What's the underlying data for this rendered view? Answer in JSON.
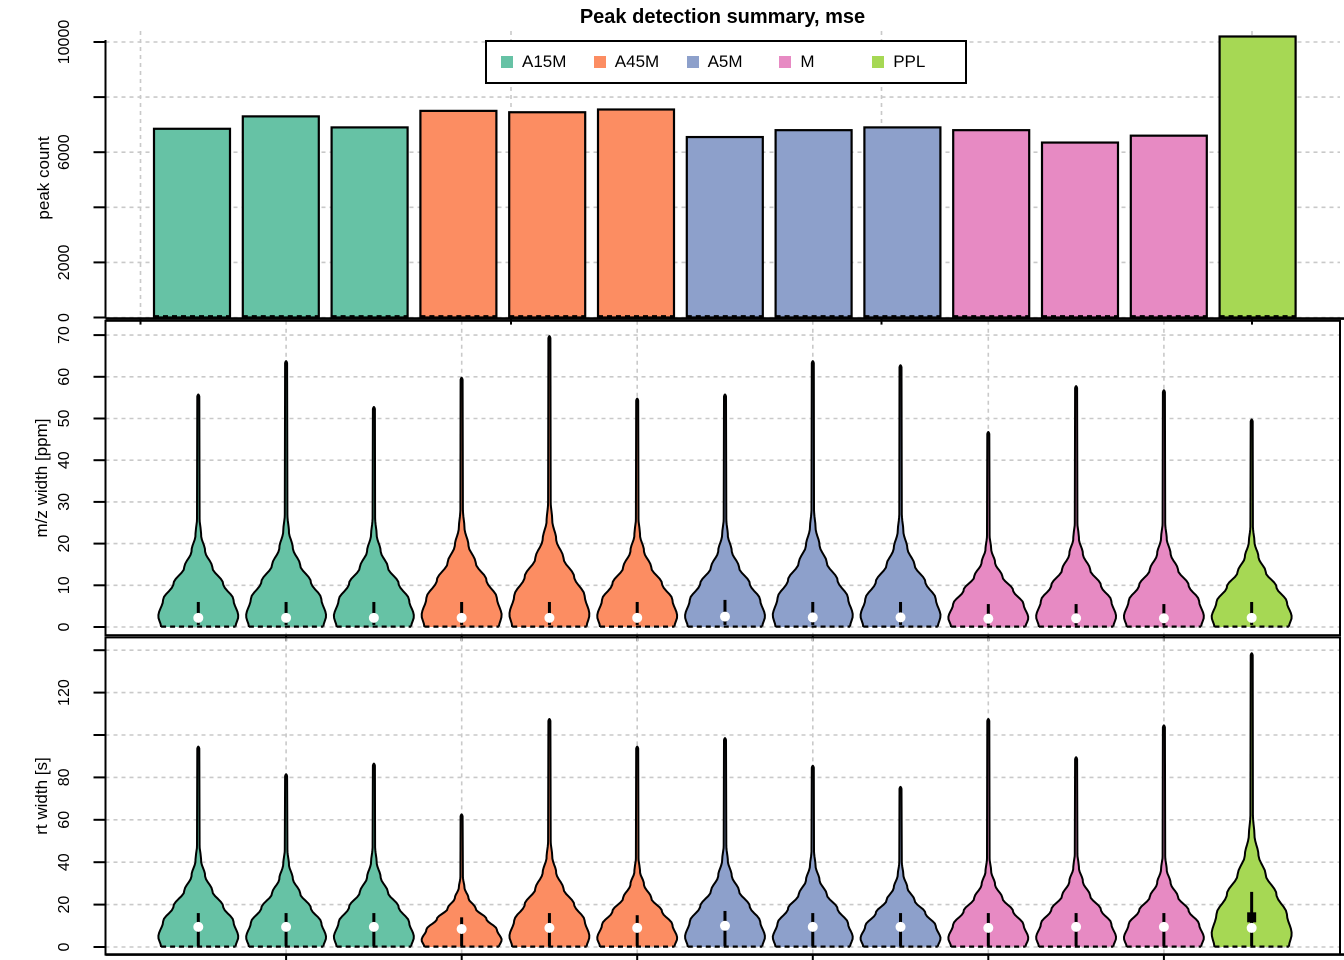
{
  "title": "Peak detection summary, mse",
  "legend": {
    "items": [
      {
        "label": "A15M",
        "color": "#66C2A5"
      },
      {
        "label": "A45M",
        "color": "#FC8D62"
      },
      {
        "label": "A5M",
        "color": "#8DA0CB"
      },
      {
        "label": "M",
        "color": "#E78AC3"
      },
      {
        "label": "PPL",
        "color": "#A6D854"
      }
    ]
  },
  "chart_data": [
    {
      "type": "bar",
      "title": "Peak detection summary, mse",
      "ylabel": "peak count",
      "ylim": [
        0,
        10450
      ],
      "grid": true,
      "yticks": [
        {
          "v": 0,
          "label": "0"
        },
        {
          "v": 2000,
          "label": "2000"
        },
        {
          "v": 4000,
          "label": ""
        },
        {
          "v": 6000,
          "label": "6000"
        },
        {
          "v": 8000,
          "label": ""
        },
        {
          "v": 10000,
          "label": "10000"
        }
      ],
      "bars": [
        {
          "group": "A15M",
          "value": 6850
        },
        {
          "group": "A15M",
          "value": 7300
        },
        {
          "group": "A15M",
          "value": 6900
        },
        {
          "group": "A45M",
          "value": 7500
        },
        {
          "group": "A45M",
          "value": 7450
        },
        {
          "group": "A45M",
          "value": 7550
        },
        {
          "group": "A5M",
          "value": 6550
        },
        {
          "group": "A5M",
          "value": 6800
        },
        {
          "group": "A5M",
          "value": 6900
        },
        {
          "group": "M",
          "value": 6800
        },
        {
          "group": "M",
          "value": 6350
        },
        {
          "group": "M",
          "value": 6600
        },
        {
          "group": "PPL",
          "value": 10200
        }
      ]
    },
    {
      "type": "violin",
      "ylabel": "m/z width [ppm]",
      "ylim": [
        0,
        73.5
      ],
      "grid": true,
      "yticks": [
        {
          "v": 0,
          "label": "0"
        },
        {
          "v": 10,
          "label": "10"
        },
        {
          "v": 20,
          "label": "20"
        },
        {
          "v": 30,
          "label": "30"
        },
        {
          "v": 40,
          "label": "40"
        },
        {
          "v": 50,
          "label": "50"
        },
        {
          "v": 60,
          "label": "60"
        },
        {
          "v": 70,
          "label": "70"
        }
      ],
      "violins": [
        {
          "group": "A15M",
          "max": 56,
          "bulb": 26,
          "median": 2.2,
          "whisker": [
            0.5,
            6
          ]
        },
        {
          "group": "A15M",
          "max": 64,
          "bulb": 27,
          "median": 2.2,
          "whisker": [
            0.5,
            6
          ]
        },
        {
          "group": "A15M",
          "max": 53,
          "bulb": 26,
          "median": 2.2,
          "whisker": [
            0.5,
            6
          ]
        },
        {
          "group": "A45M",
          "max": 60,
          "bulb": 28,
          "median": 2.2,
          "whisker": [
            0.5,
            6
          ]
        },
        {
          "group": "A45M",
          "max": 70,
          "bulb": 30,
          "median": 2.2,
          "whisker": [
            0.5,
            6
          ]
        },
        {
          "group": "A45M",
          "max": 55,
          "bulb": 26,
          "median": 2.2,
          "whisker": [
            0.5,
            6
          ]
        },
        {
          "group": "A5M",
          "max": 56,
          "bulb": 26,
          "median": 2.5,
          "whisker": [
            0.5,
            6.5
          ]
        },
        {
          "group": "A5M",
          "max": 64,
          "bulb": 28,
          "median": 2.3,
          "whisker": [
            0.5,
            6
          ]
        },
        {
          "group": "A5M",
          "max": 63,
          "bulb": 27,
          "median": 2.3,
          "whisker": [
            0.5,
            6
          ]
        },
        {
          "group": "M",
          "max": 47,
          "bulb": 22,
          "median": 2.0,
          "whisker": [
            0.4,
            5.5
          ]
        },
        {
          "group": "M",
          "max": 58,
          "bulb": 25,
          "median": 2.1,
          "whisker": [
            0.4,
            5.5
          ]
        },
        {
          "group": "M",
          "max": 57,
          "bulb": 25,
          "median": 2.1,
          "whisker": [
            0.4,
            5.5
          ]
        },
        {
          "group": "PPL",
          "max": 50,
          "bulb": 24,
          "median": 2.2,
          "whisker": [
            0.5,
            6
          ]
        }
      ]
    },
    {
      "type": "violin",
      "ylabel": "rt width [s]",
      "ylim": [
        0,
        146
      ],
      "grid": true,
      "yticks": [
        {
          "v": 0,
          "label": "0"
        },
        {
          "v": 20,
          "label": "20"
        },
        {
          "v": 40,
          "label": "40"
        },
        {
          "v": 60,
          "label": "60"
        },
        {
          "v": 80,
          "label": "80"
        },
        {
          "v": 100,
          "label": ""
        },
        {
          "v": 120,
          "label": "120"
        },
        {
          "v": 140,
          "label": ""
        }
      ],
      "violins": [
        {
          "group": "A15M",
          "max": 95,
          "bulb": 48,
          "median": 9.5,
          "whisker": [
            0.5,
            16
          ]
        },
        {
          "group": "A15M",
          "max": 82,
          "bulb": 46,
          "median": 9.5,
          "whisker": [
            0.5,
            16
          ]
        },
        {
          "group": "A15M",
          "max": 87,
          "bulb": 47,
          "median": 9.5,
          "whisker": [
            0.5,
            16
          ]
        },
        {
          "group": "A45M",
          "max": 63,
          "bulb": 33,
          "median": 8.5,
          "whisker": [
            0.5,
            14
          ]
        },
        {
          "group": "A45M",
          "max": 108,
          "bulb": 50,
          "median": 9.0,
          "whisker": [
            0.5,
            16
          ]
        },
        {
          "group": "A45M",
          "max": 95,
          "bulb": 42,
          "median": 9.0,
          "whisker": [
            0.5,
            15
          ]
        },
        {
          "group": "A5M",
          "max": 99,
          "bulb": 48,
          "median": 10,
          "whisker": [
            0.5,
            17
          ]
        },
        {
          "group": "A5M",
          "max": 86,
          "bulb": 45,
          "median": 9.5,
          "whisker": [
            0.5,
            16
          ]
        },
        {
          "group": "A5M",
          "max": 76,
          "bulb": 40,
          "median": 9.5,
          "whisker": [
            0.5,
            16
          ]
        },
        {
          "group": "M",
          "max": 108,
          "bulb": 42,
          "median": 9.0,
          "whisker": [
            0.5,
            16
          ]
        },
        {
          "group": "M",
          "max": 90,
          "bulb": 44,
          "median": 9.5,
          "whisker": [
            0.5,
            16
          ]
        },
        {
          "group": "M",
          "max": 105,
          "bulb": 43,
          "median": 9.5,
          "whisker": [
            0.5,
            16
          ]
        },
        {
          "group": "PPL",
          "max": 139,
          "bulb": 62,
          "median": 9.0,
          "whisker": [
            0.5,
            26
          ],
          "box_marker": 14
        }
      ]
    }
  ],
  "group_colors": {
    "A15M": "#66C2A5",
    "A45M": "#FC8D62",
    "A5M": "#8DA0CB",
    "M": "#E78AC3",
    "PPL": "#A6D854"
  },
  "style": {
    "grid_color": "#C9C9C9",
    "axis_color": "#000000",
    "background": "#FFFFFF"
  }
}
